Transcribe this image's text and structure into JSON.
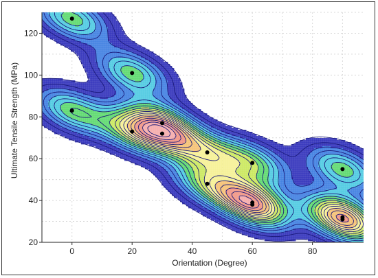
{
  "chart_data": {
    "type": "heatmap",
    "subtype": "contour-density",
    "xlabel": "Orientation (Degree)",
    "ylabel": "Ultimate Tensile Strength (MPa)",
    "xlim": [
      -10,
      97
    ],
    "ylim": [
      20,
      130
    ],
    "x_ticks": [
      0,
      20,
      40,
      60,
      80
    ],
    "y_ticks": [
      20,
      40,
      60,
      80,
      100,
      120
    ],
    "grid": true,
    "colormap": [
      "#2b2bb8",
      "#3a7be0",
      "#48c8e0",
      "#58d86a",
      "#c8e858",
      "#f6f090",
      "#f6c070",
      "#f09080",
      "#f4a8a8"
    ],
    "contour_line_color": "#1a1a7a",
    "points": [
      {
        "x": 0,
        "y": 127
      },
      {
        "x": 0,
        "y": 83
      },
      {
        "x": 20,
        "y": 101
      },
      {
        "x": 20,
        "y": 73
      },
      {
        "x": 30,
        "y": 77
      },
      {
        "x": 30,
        "y": 72
      },
      {
        "x": 45,
        "y": 63
      },
      {
        "x": 45,
        "y": 48
      },
      {
        "x": 60,
        "y": 58
      },
      {
        "x": 60,
        "y": 39
      },
      {
        "x": 60,
        "y": 38
      },
      {
        "x": 90,
        "y": 55
      },
      {
        "x": 90,
        "y": 32
      },
      {
        "x": 90,
        "y": 31
      }
    ]
  }
}
